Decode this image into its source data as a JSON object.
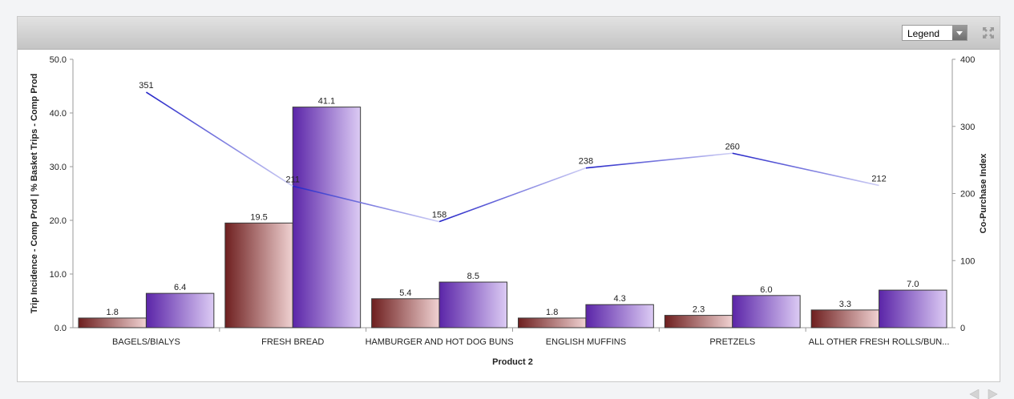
{
  "header": {
    "legend_label": "Legend"
  },
  "chart_data": {
    "type": "bar",
    "categories": [
      "BAGELS/BIALYS",
      "FRESH BREAD",
      "HAMBURGER AND HOT DOG BUNS",
      "ENGLISH MUFFINS",
      "PRETZELS",
      "ALL OTHER FRESH ROLLS/BUN..."
    ],
    "series": [
      {
        "values": [
          1.8,
          19.5,
          5.4,
          1.8,
          2.3,
          3.3
        ],
        "axis": "left",
        "color": "#7a2a2a"
      },
      {
        "values": [
          6.4,
          41.1,
          8.5,
          4.3,
          6.0,
          7.0
        ],
        "axis": "left",
        "color": "#6a2fb3"
      },
      {
        "type": "line",
        "axis": "right",
        "values": [
          351,
          211,
          158,
          238,
          260,
          212
        ],
        "color": "#3b3bd6"
      }
    ],
    "xlabel": "Product 2",
    "ylabel": "Trip Incidence - Comp Prod | % Basket Trips - Comp Prod",
    "y2label": "Co-Purchase Index",
    "ylim": [
      0,
      50
    ],
    "y2lim": [
      0,
      400
    ],
    "yticks": [
      "0.0",
      "10.0",
      "20.0",
      "30.0",
      "40.0",
      "50.0"
    ],
    "y2ticks": [
      "0",
      "100",
      "200",
      "300",
      "400"
    ],
    "grid": false
  }
}
